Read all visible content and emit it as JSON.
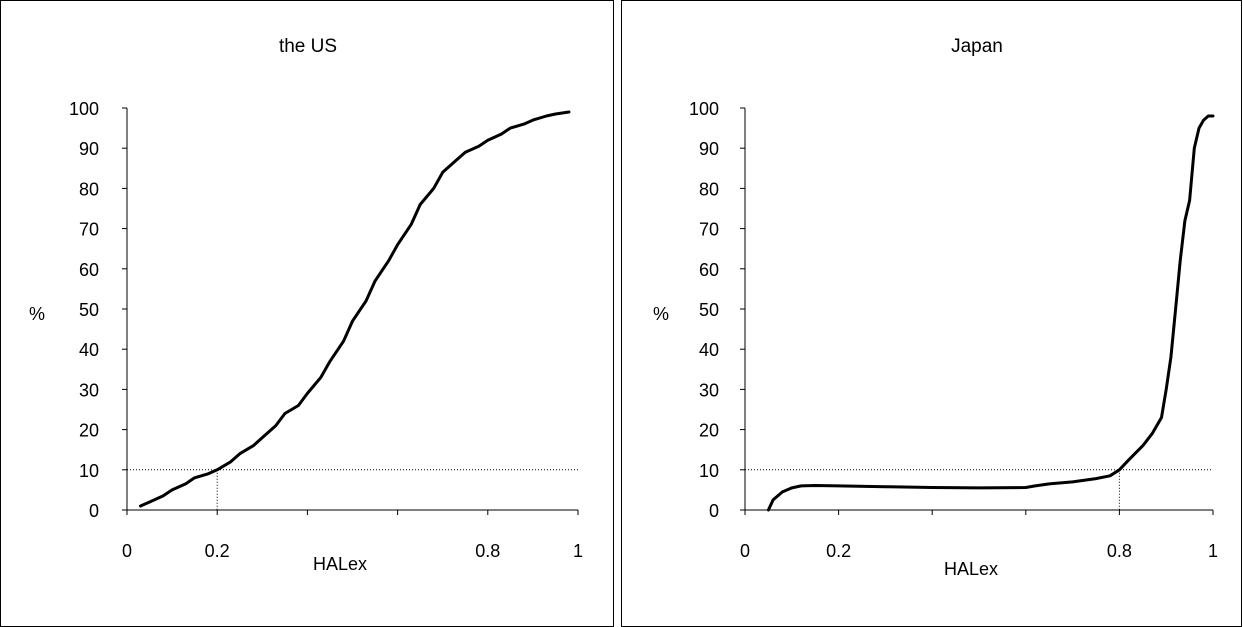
{
  "chart_data": [
    {
      "type": "line",
      "title": "the US",
      "xlabel": "HALex",
      "ylabel": "%",
      "xlim": [
        0,
        1
      ],
      "ylim": [
        0,
        100
      ],
      "x_tick_labels": [
        {
          "value": 0,
          "label": "0"
        },
        {
          "value": 0.2,
          "label": "0.2"
        },
        {
          "value": 0.8,
          "label": "0.8"
        },
        {
          "value": 1,
          "label": "1"
        }
      ],
      "y_tick_labels": [
        "0",
        "10",
        "20",
        "30",
        "40",
        "50",
        "60",
        "70",
        "80",
        "90",
        "100"
      ],
      "y_ticks": [
        0,
        10,
        20,
        30,
        40,
        50,
        60,
        70,
        80,
        90,
        100
      ],
      "x_minor_ticks": [
        0,
        0.2,
        0.4,
        0.6,
        0.8,
        1
      ],
      "grid": false,
      "reference_line": {
        "y": 10,
        "x_at": 0.2,
        "style": "dotted"
      },
      "series": [
        {
          "x": [
            0.03,
            0.05,
            0.08,
            0.1,
            0.13,
            0.15,
            0.18,
            0.2,
            0.23,
            0.25,
            0.28,
            0.3,
            0.33,
            0.35,
            0.38,
            0.4,
            0.43,
            0.45,
            0.48,
            0.5,
            0.53,
            0.55,
            0.58,
            0.6,
            0.63,
            0.65,
            0.68,
            0.7,
            0.73,
            0.75,
            0.78,
            0.8,
            0.83,
            0.85,
            0.88,
            0.9,
            0.93,
            0.95,
            0.98
          ],
          "y": [
            1,
            2,
            3.5,
            5,
            6.5,
            8,
            9,
            10,
            12,
            14,
            16,
            18,
            21,
            24,
            26,
            29,
            33,
            37,
            42,
            47,
            52,
            57,
            62,
            66,
            71,
            76,
            80,
            84,
            87,
            89,
            90.5,
            92,
            93.5,
            95,
            96,
            97,
            98,
            98.5,
            99
          ]
        }
      ]
    },
    {
      "type": "line",
      "title": "Japan",
      "xlabel": "HALex",
      "ylabel": "%",
      "xlim": [
        0,
        1
      ],
      "ylim": [
        0,
        100
      ],
      "x_tick_labels": [
        {
          "value": 0,
          "label": "0"
        },
        {
          "value": 0.2,
          "label": "0.2"
        },
        {
          "value": 0.8,
          "label": "0.8"
        },
        {
          "value": 1,
          "label": "1"
        }
      ],
      "y_tick_labels": [
        "0",
        "10",
        "20",
        "30",
        "40",
        "50",
        "60",
        "70",
        "80",
        "90",
        "100"
      ],
      "y_ticks": [
        0,
        10,
        20,
        30,
        40,
        50,
        60,
        70,
        80,
        90,
        100
      ],
      "x_minor_ticks": [
        0,
        0.2,
        0.4,
        0.6,
        0.8,
        1
      ],
      "grid": false,
      "reference_line": {
        "y": 10,
        "x_at": 0.8,
        "style": "dotted"
      },
      "series": [
        {
          "x": [
            0.05,
            0.06,
            0.08,
            0.1,
            0.12,
            0.15,
            0.2,
            0.3,
            0.4,
            0.5,
            0.6,
            0.62,
            0.65,
            0.7,
            0.75,
            0.78,
            0.8,
            0.82,
            0.85,
            0.87,
            0.89,
            0.9,
            0.91,
            0.92,
            0.93,
            0.94,
            0.95,
            0.96,
            0.97,
            0.98,
            0.99,
            1.0
          ],
          "y": [
            0,
            2.5,
            4.5,
            5.5,
            6,
            6.1,
            6,
            5.8,
            5.6,
            5.5,
            5.6,
            6,
            6.5,
            7,
            7.8,
            8.5,
            10,
            12.5,
            16,
            19,
            23,
            30,
            38,
            50,
            62,
            72,
            77,
            90,
            95,
            97,
            98,
            98
          ]
        }
      ]
    }
  ]
}
